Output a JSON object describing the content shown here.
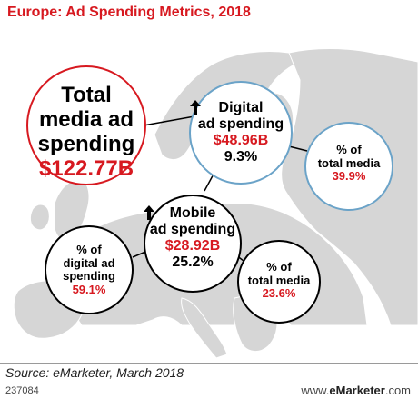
{
  "title": "Europe: Ad Spending Metrics, 2018",
  "metrics": {
    "total_media": {
      "label_lines": [
        "Total",
        "media ad",
        "spending"
      ],
      "value": "$122.77B"
    },
    "digital": {
      "label_lines": [
        "Digital",
        "ad spending"
      ],
      "value": "$48.96B",
      "change": "9.3%"
    },
    "digital_share": {
      "label_lines": [
        "% of",
        "total media"
      ],
      "value": "39.9%"
    },
    "mobile": {
      "label_lines": [
        "Mobile",
        "ad spending"
      ],
      "value": "$28.92B",
      "change": "25.2%"
    },
    "mobile_share_digital": {
      "label_lines": [
        "% of",
        "digital ad",
        "spending"
      ],
      "value": "59.1%"
    },
    "mobile_share_total": {
      "label_lines": [
        "% of",
        "total media"
      ],
      "value": "23.6%"
    }
  },
  "colors": {
    "accent_red": "#d71920",
    "digital_circle": "#6ba3c8",
    "map": "#d6d6d6"
  },
  "footer": {
    "source": "Source: eMarketer, March 2018",
    "chart_id": "237084",
    "brand_prefix": "www.",
    "brand_name": "eMarketer",
    "brand_suffix": ".com"
  }
}
